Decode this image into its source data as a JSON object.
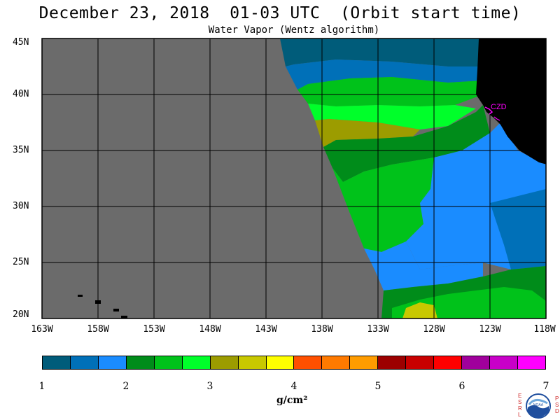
{
  "title": "December 23, 2018  01-03 UTC  (Orbit start time)",
  "subtitle": "Water Vapor (Wentz algorithm)",
  "map": {
    "lat_labels": [
      "45N",
      "40N",
      "35N",
      "30N",
      "25N",
      "20N"
    ],
    "lon_labels": [
      "163W",
      "158W",
      "153W",
      "148W",
      "143W",
      "138W",
      "133W",
      "128W",
      "123W",
      "118W"
    ],
    "station_label": "CZD",
    "colors": {
      "no_data": "#6b6b6b",
      "land": "#000000",
      "station": "#ff00ff"
    }
  },
  "colorbar": {
    "colors": [
      "#005c7a",
      "#0070b8",
      "#1a8cff",
      "#008c1a",
      "#00c21a",
      "#00ff2a",
      "#9c9c00",
      "#c8c800",
      "#ffff00",
      "#ff5000",
      "#ff7a00",
      "#ff9c00",
      "#9c0000",
      "#c80000",
      "#ff0000",
      "#a0009c",
      "#c800c8",
      "#ff00ff"
    ],
    "ticks": [
      "1",
      "2",
      "3",
      "4",
      "5",
      "6",
      "7"
    ],
    "units": "g/cm²"
  },
  "logo": {
    "left_letters": "ESRL",
    "right_letters": "PSD",
    "center_text": "NOAA"
  }
}
